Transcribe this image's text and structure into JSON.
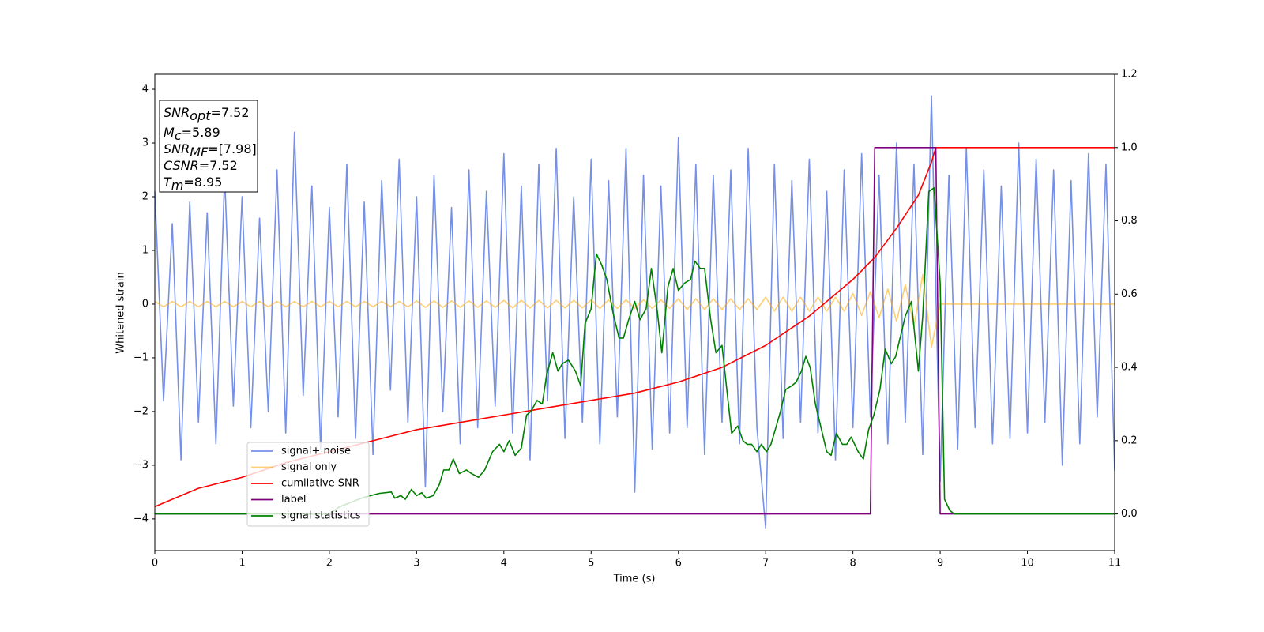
{
  "chart_data": {
    "type": "line",
    "xlabel": "Time (s)",
    "ylabel": "Whitened strain",
    "xlim": [
      0,
      11
    ],
    "ylim": [
      -4.59,
      4.28
    ],
    "y2lim": [
      -0.1,
      1.2
    ],
    "xticks": [
      0,
      1,
      2,
      3,
      4,
      5,
      6,
      7,
      8,
      9,
      10,
      11
    ],
    "yticks": [
      {
        "value": -4,
        "label": "−4"
      },
      {
        "value": -3,
        "label": "−3"
      },
      {
        "value": -2,
        "label": "−2"
      },
      {
        "value": -1,
        "label": "−1"
      },
      0,
      1,
      2,
      3,
      4
    ],
    "y2ticks": [
      {
        "value": 0,
        "label": "0.0"
      },
      0.2,
      0.4,
      0.6,
      0.8,
      {
        "value": 1,
        "label": "1.0"
      },
      1.2
    ],
    "legend_loc": "lower left",
    "annotation": [
      {
        "main": "SNR",
        "sub": "opt",
        "rest": "=7.52"
      },
      {
        "main": "M",
        "sub": "c",
        "rest": "=5.89"
      },
      {
        "main": "SNR",
        "sub": "MF",
        "rest": "=[7.98]"
      },
      {
        "main": "CSNR",
        "rest": "=7.52"
      },
      {
        "main": "T",
        "sub": "m",
        "rest": "=8.95"
      }
    ],
    "x": [
      0,
      0.1,
      0.2,
      0.3,
      0.4,
      0.5,
      0.6,
      0.7,
      0.8,
      0.9,
      1,
      1.1,
      1.2,
      1.3,
      1.4,
      1.5,
      1.6,
      1.7,
      1.8,
      1.9,
      2,
      2.1,
      2.2,
      2.3,
      2.4,
      2.5,
      2.6,
      2.7,
      2.8,
      2.9,
      3,
      3.1,
      3.2,
      3.3,
      3.4,
      3.5,
      3.6,
      3.7,
      3.8,
      3.9,
      4,
      4.1,
      4.2,
      4.3,
      4.4,
      4.5,
      4.6,
      4.7,
      4.8,
      4.9,
      5,
      5.1,
      5.2,
      5.3,
      5.4,
      5.5,
      5.6,
      5.7,
      5.8,
      5.9,
      6,
      6.1,
      6.2,
      6.3,
      6.4,
      6.5,
      6.6,
      6.7,
      6.8,
      6.9,
      7,
      7.1,
      7.2,
      7.3,
      7.4,
      7.5,
      7.6,
      7.7,
      7.8,
      7.9,
      8,
      8.1,
      8.2,
      8.3,
      8.4,
      8.5,
      8.6,
      8.7,
      8.8,
      8.9,
      9,
      9.1,
      9.2,
      9.3,
      9.4,
      9.5,
      9.6,
      9.7,
      9.8,
      9.9,
      10,
      10.1,
      10.2,
      10.3,
      10.4,
      10.5,
      10.6,
      10.7,
      10.8,
      10.9,
      11
    ],
    "series": [
      {
        "name": "signal+ noise",
        "color": "#6f8ae6",
        "axis": "y",
        "values": [
          2.1,
          -1.8,
          1.5,
          -2.9,
          1.9,
          -2.2,
          1.7,
          -2.6,
          2.4,
          -1.9,
          2.0,
          -2.3,
          1.6,
          -2.0,
          2.5,
          -2.4,
          3.2,
          -1.7,
          2.2,
          -2.7,
          1.8,
          -2.1,
          2.6,
          -2.5,
          1.9,
          -2.8,
          2.3,
          -1.6,
          2.7,
          -2.2,
          2.0,
          -3.4,
          2.4,
          -2.0,
          1.8,
          -2.6,
          2.5,
          -2.3,
          2.1,
          -1.9,
          2.8,
          -2.4,
          2.2,
          -2.9,
          2.6,
          -1.8,
          2.9,
          -2.5,
          2.0,
          -2.2,
          2.7,
          -2.6,
          2.3,
          -2.1,
          2.9,
          -3.5,
          2.4,
          -2.7,
          2.2,
          -2.4,
          3.1,
          -2.3,
          2.6,
          -2.8,
          2.4,
          -2.2,
          2.5,
          -2.6,
          2.9,
          -2.3,
          -4.17,
          2.6,
          -2.5,
          2.3,
          -2.2,
          2.7,
          -2.4,
          2.1,
          -2.9,
          2.5,
          -2.3,
          2.8,
          -2.1,
          2.4,
          -2.6,
          3.0,
          -2.2,
          2.6,
          -2.8,
          3.88,
          -3.3,
          2.4,
          -2.7,
          2.9,
          -2.3,
          2.5,
          -2.6,
          2.2,
          -2.5,
          3.0,
          -2.4,
          2.7,
          -2.2,
          2.5,
          -3.0,
          2.3,
          -2.6,
          2.8,
          -2.1,
          2.6,
          -3.1
        ]
      },
      {
        "name": "signal only",
        "color": "#ffa500",
        "axis": "y",
        "values": [
          0.05,
          -0.05,
          0.05,
          -0.05,
          0.05,
          -0.05,
          0.05,
          -0.05,
          0.05,
          -0.05,
          0.05,
          -0.05,
          0.05,
          -0.05,
          0.05,
          -0.05,
          0.05,
          -0.05,
          0.05,
          -0.05,
          0.05,
          -0.05,
          0.05,
          -0.05,
          0.05,
          -0.05,
          0.05,
          -0.05,
          0.05,
          -0.05,
          0.06,
          -0.06,
          0.06,
          -0.06,
          0.06,
          -0.06,
          0.06,
          -0.06,
          0.06,
          -0.06,
          0.07,
          -0.07,
          0.07,
          -0.07,
          0.07,
          -0.07,
          0.07,
          -0.07,
          0.07,
          -0.07,
          0.08,
          -0.08,
          0.08,
          -0.08,
          0.08,
          -0.08,
          0.08,
          -0.08,
          0.08,
          -0.08,
          0.1,
          -0.1,
          0.1,
          -0.1,
          0.1,
          -0.1,
          0.1,
          -0.1,
          0.1,
          -0.1,
          0.13,
          -0.13,
          0.13,
          -0.13,
          0.13,
          -0.13,
          0.13,
          -0.13,
          0.13,
          -0.13,
          0.2,
          -0.21,
          0.23,
          -0.25,
          0.28,
          -0.32,
          0.36,
          -0.42,
          0.55,
          -0.8,
          0,
          0,
          0,
          0,
          0,
          0,
          0,
          0,
          0,
          0,
          0,
          0,
          0,
          0,
          0,
          0,
          0,
          0,
          0,
          0,
          0
        ]
      },
      {
        "name": "cumilative SNR",
        "color": "#ff0000",
        "axis": "y2",
        "x": [
          0,
          0.5,
          1,
          1.5,
          2,
          2.5,
          3,
          3.5,
          4,
          4.5,
          5,
          5.5,
          6,
          6.5,
          7,
          7.5,
          8,
          8.25,
          8.5,
          8.75,
          8.9,
          8.95,
          11
        ],
        "values": [
          0.02,
          0.07,
          0.1,
          0.14,
          0.17,
          0.2,
          0.23,
          0.25,
          0.27,
          0.29,
          0.31,
          0.33,
          0.36,
          0.4,
          0.46,
          0.54,
          0.64,
          0.7,
          0.78,
          0.87,
          0.96,
          1.0,
          1.0
        ]
      },
      {
        "name": "label",
        "color": "#800080",
        "axis": "y2",
        "x": [
          0,
          8.2,
          8.25,
          8.95,
          9.0,
          11
        ],
        "values": [
          0,
          0,
          1,
          1,
          0,
          0
        ]
      },
      {
        "name": "signal statistics",
        "color": "#008000",
        "axis": "y2",
        "x": [
          0,
          2.0,
          2.12,
          2.39,
          2.57,
          2.71,
          2.75,
          2.82,
          2.87,
          2.94,
          3.0,
          3.06,
          3.11,
          3.19,
          3.26,
          3.31,
          3.37,
          3.42,
          3.49,
          3.57,
          3.63,
          3.71,
          3.78,
          3.87,
          3.95,
          4.0,
          4.06,
          4.13,
          4.2,
          4.26,
          4.31,
          4.38,
          4.44,
          4.49,
          4.56,
          4.62,
          4.67,
          4.74,
          4.82,
          4.88,
          4.93,
          5.0,
          5.06,
          5.12,
          5.18,
          5.25,
          5.32,
          5.37,
          5.43,
          5.5,
          5.56,
          5.63,
          5.69,
          5.76,
          5.81,
          5.88,
          5.94,
          6.0,
          6.07,
          6.14,
          6.19,
          6.25,
          6.3,
          6.37,
          6.43,
          6.5,
          6.55,
          6.61,
          6.68,
          6.74,
          6.79,
          6.84,
          6.9,
          6.95,
          7.01,
          7.06,
          7.11,
          7.17,
          7.23,
          7.3,
          7.35,
          7.41,
          7.46,
          7.51,
          7.57,
          7.62,
          7.7,
          7.75,
          7.81,
          7.88,
          7.93,
          7.98,
          8.06,
          8.12,
          8.18,
          8.24,
          8.31,
          8.37,
          8.44,
          8.49,
          8.55,
          8.6,
          8.67,
          8.75,
          8.8,
          8.87,
          8.93,
          9.0,
          9.05,
          9.11,
          9.16,
          10.0,
          11
        ],
        "values": [
          0,
          0,
          0.02,
          0.045,
          0.056,
          0.06,
          0.043,
          0.05,
          0.04,
          0.067,
          0.05,
          0.058,
          0.043,
          0.05,
          0.08,
          0.12,
          0.12,
          0.15,
          0.11,
          0.12,
          0.11,
          0.1,
          0.12,
          0.17,
          0.19,
          0.17,
          0.2,
          0.16,
          0.18,
          0.27,
          0.28,
          0.31,
          0.3,
          0.38,
          0.44,
          0.39,
          0.41,
          0.42,
          0.39,
          0.35,
          0.52,
          0.56,
          0.71,
          0.68,
          0.64,
          0.55,
          0.48,
          0.48,
          0.53,
          0.58,
          0.53,
          0.56,
          0.67,
          0.55,
          0.44,
          0.62,
          0.67,
          0.61,
          0.63,
          0.64,
          0.69,
          0.67,
          0.67,
          0.53,
          0.44,
          0.46,
          0.35,
          0.22,
          0.24,
          0.2,
          0.19,
          0.19,
          0.17,
          0.19,
          0.17,
          0.19,
          0.23,
          0.28,
          0.34,
          0.35,
          0.36,
          0.39,
          0.43,
          0.4,
          0.3,
          0.25,
          0.17,
          0.16,
          0.22,
          0.19,
          0.19,
          0.21,
          0.17,
          0.15,
          0.23,
          0.27,
          0.34,
          0.45,
          0.41,
          0.43,
          0.49,
          0.54,
          0.58,
          0.39,
          0.54,
          0.88,
          0.89,
          0.63,
          0.04,
          0.01,
          0,
          0,
          0
        ]
      }
    ]
  }
}
